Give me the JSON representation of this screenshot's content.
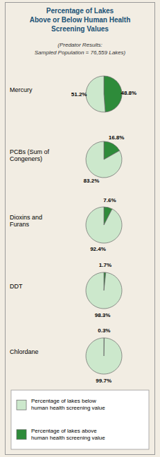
{
  "chart_data": {
    "type": "pie",
    "title": "Percentage of Lakes\nAbove or Below Human Health\nScreening Values",
    "subtitle": "(Predator Results:\nSampled Population = 76,559 Lakes)",
    "categories": [
      "Mercury",
      "PCBs (Sum of\nCongeners)",
      "Dioxins and\nFurans",
      "DDT",
      "Chlordane"
    ],
    "series": [
      {
        "name": "Percentage of lakes above\nhuman health screening value",
        "color": "#2e8b3a",
        "values": [
          48.8,
          16.8,
          7.6,
          1.7,
          0.3
        ],
        "value_labels": [
          "48.8%",
          "16.8%",
          "7.6%",
          "1.7%",
          "0.3%"
        ]
      },
      {
        "name": "Percentage of lakes below\nhuman health screening value",
        "color": "#cce8cc",
        "values": [
          51.2,
          83.2,
          92.4,
          98.3,
          99.7
        ],
        "value_labels": [
          "51.2%",
          "83.2%",
          "92.4%",
          "98.3%",
          "99.7%"
        ]
      }
    ],
    "data_labels": true,
    "legend": "bottom"
  }
}
